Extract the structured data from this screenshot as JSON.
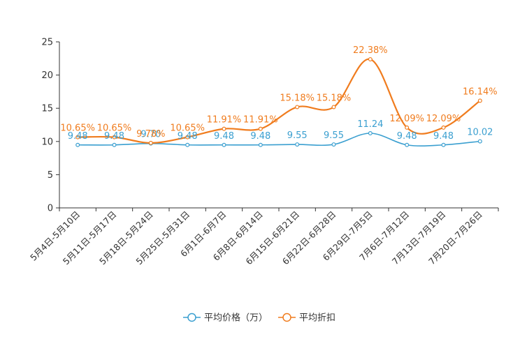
{
  "chart_data": {
    "type": "line",
    "categories": [
      "5月4日-5月10日",
      "5月11日-5月17日",
      "5月18日-5月24日",
      "5月25日-5月31日",
      "6月1日-6月7日",
      "6月8日-6月14日",
      "6月15日-6月21日",
      "6月22日-6月28日",
      "6月29日-7月5日",
      "7月6日-7月12日",
      "7月13日-7月19日",
      "7月20日-7月26日"
    ],
    "series": [
      {
        "name": "平均价格（万）",
        "color": "#3a9fd0",
        "values": [
          9.48,
          9.48,
          9.7,
          9.48,
          9.48,
          9.48,
          9.55,
          9.55,
          11.24,
          9.48,
          9.48,
          10.02
        ],
        "labels": [
          "9.48",
          "9.48",
          "9.70",
          "9.48",
          "9.48",
          "9.48",
          "9.55",
          "9.55",
          "11.24",
          "9.48",
          "9.48",
          "10.02"
        ]
      },
      {
        "name": "平均折扣",
        "color": "#f07c1e",
        "values": [
          10.65,
          10.65,
          9.78,
          10.65,
          11.91,
          11.91,
          15.18,
          15.18,
          22.38,
          12.09,
          12.09,
          16.14
        ],
        "labels": [
          "10.65%",
          "10.65%",
          "9.78%",
          "10.65%",
          "11.91%",
          "11.91%",
          "15.18%",
          "15.18%",
          "22.38%",
          "12.09%",
          "12.09%",
          "16.14%"
        ]
      }
    ],
    "yticks": [
      "0",
      "5",
      "10",
      "15",
      "20",
      "25"
    ],
    "ylim": [
      0,
      25
    ],
    "grid": false,
    "legend_position": "bottom-center",
    "title": "",
    "xlabel": "",
    "ylabel": ""
  }
}
